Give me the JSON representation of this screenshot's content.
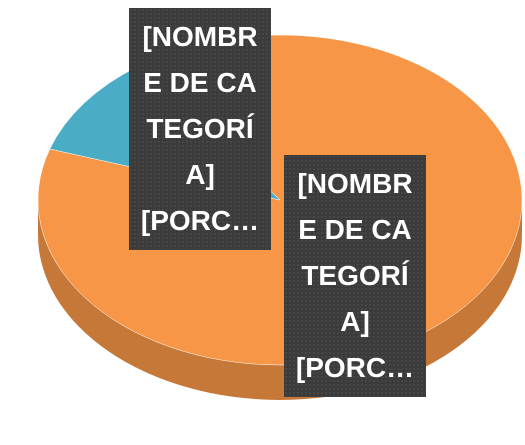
{
  "chart_data": {
    "type": "pie",
    "categories": [
      "[NOMBRE DE CATEGORÍA]",
      "[NOMBRE DE CATEGORÍA]"
    ],
    "values": [
      90,
      10
    ],
    "value_labels": [
      "[PORC…",
      "[PORC…"
    ],
    "colors": [
      "#f79646",
      "#4bacc6"
    ]
  }
}
